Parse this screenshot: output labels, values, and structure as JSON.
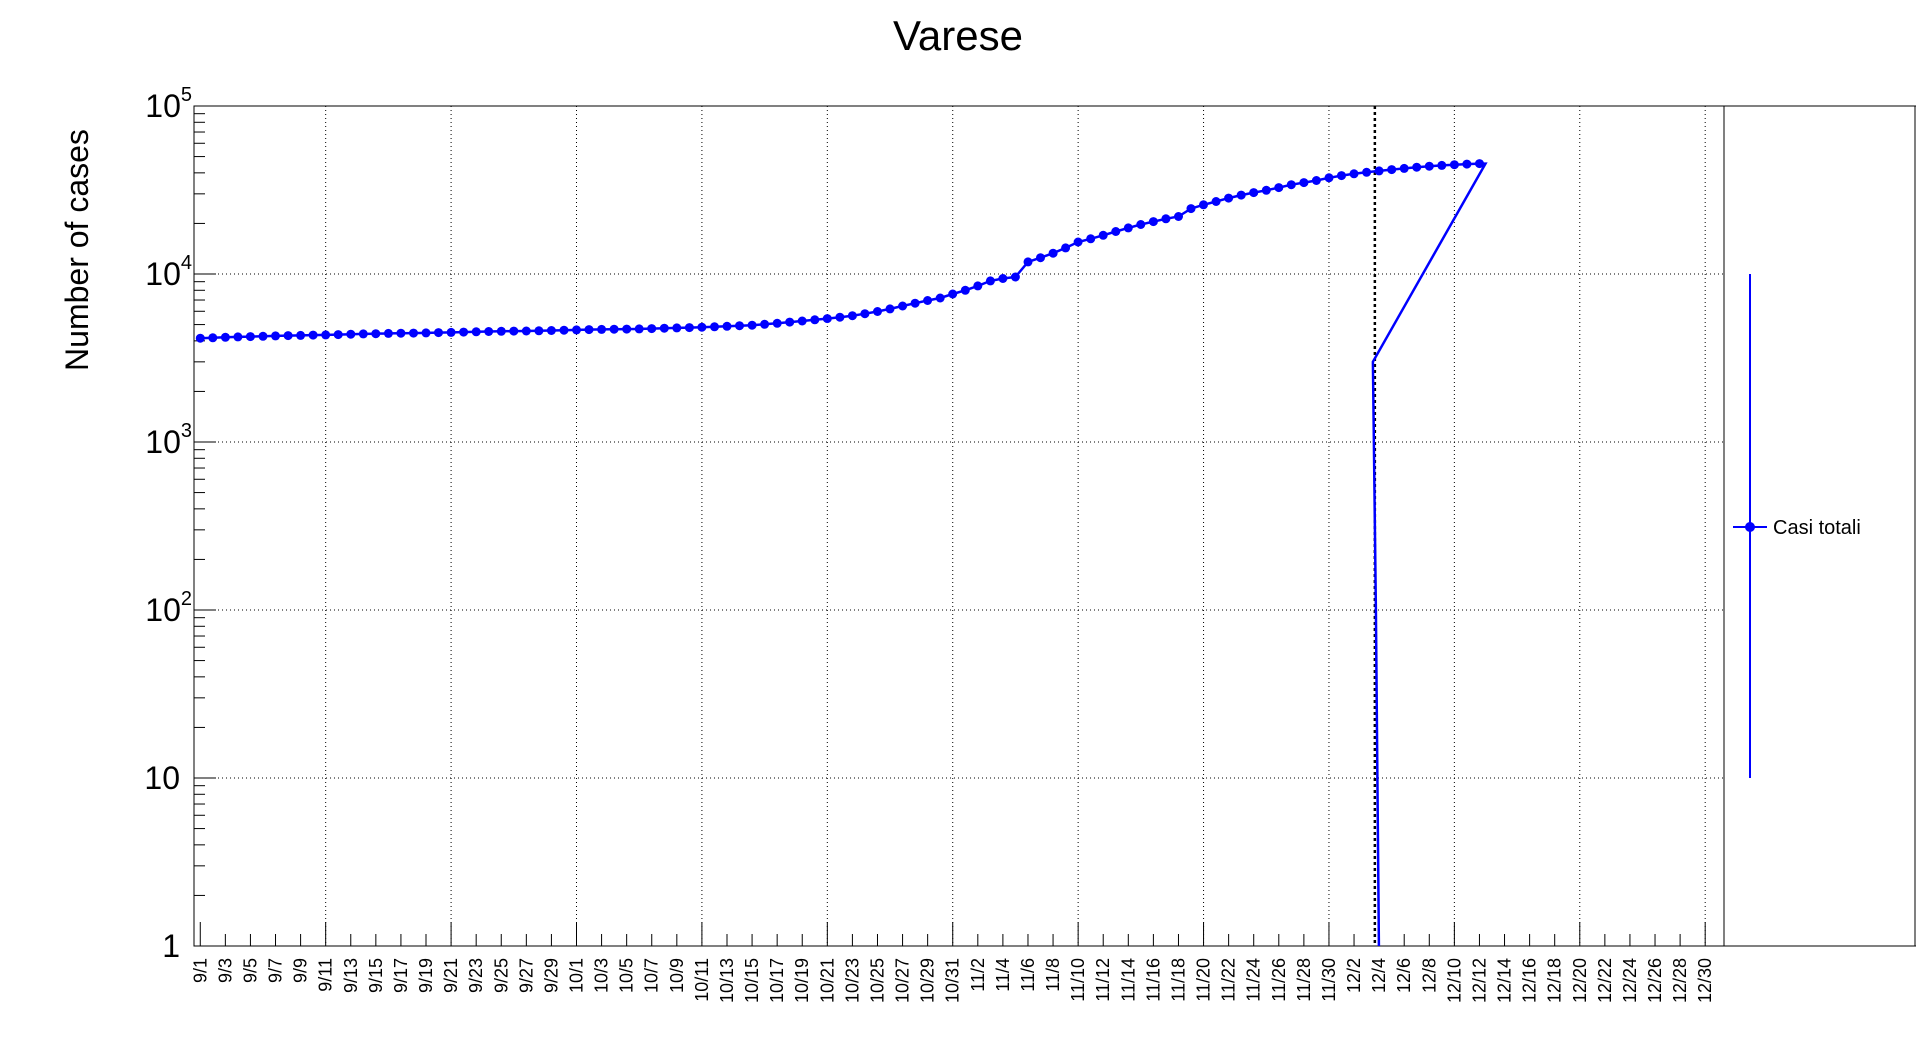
{
  "chart_data": {
    "type": "line",
    "title": "Varese",
    "xlabel": "",
    "ylabel": "Number of cases",
    "yscale": "log",
    "ylim": [
      1,
      100000
    ],
    "grid": true,
    "legend_placement": "right",
    "y_tick_labels": [
      {
        "value": 1,
        "base": "1",
        "exp": ""
      },
      {
        "value": 10,
        "base": "10",
        "exp": ""
      },
      {
        "value": 100,
        "base": "10",
        "exp": "2"
      },
      {
        "value": 1000,
        "base": "10",
        "exp": "3"
      },
      {
        "value": 10000,
        "base": "10",
        "exp": "4"
      },
      {
        "value": 100000,
        "base": "10",
        "exp": "5"
      }
    ],
    "x_tick_labels": [
      "9/1",
      "9/3",
      "9/5",
      "9/7",
      "9/9",
      "9/11",
      "9/13",
      "9/15",
      "9/17",
      "9/19",
      "9/21",
      "9/23",
      "9/25",
      "9/27",
      "9/29",
      "10/1",
      "10/3",
      "10/5",
      "10/7",
      "10/9",
      "10/11",
      "10/13",
      "10/15",
      "10/17",
      "10/19",
      "10/21",
      "10/23",
      "10/25",
      "10/27",
      "10/29",
      "10/31",
      "11/2",
      "11/4",
      "11/6",
      "11/8",
      "11/10",
      "11/12",
      "11/14",
      "11/16",
      "11/18",
      "11/20",
      "11/22",
      "11/24",
      "11/26",
      "11/28",
      "11/30",
      "12/2",
      "12/4",
      "12/6",
      "12/8",
      "12/10",
      "12/12",
      "12/14",
      "12/16",
      "12/18",
      "12/20",
      "12/22",
      "12/24",
      "12/26",
      "12/28",
      "12/30"
    ],
    "x_start": "9/1",
    "x_end": "12/31",
    "marker_date": "12/4",
    "series": [
      {
        "name": "Casi totali",
        "color": "#0000ff",
        "x_start": "9/1",
        "values": [
          4150,
          4170,
          4200,
          4220,
          4240,
          4260,
          4280,
          4300,
          4310,
          4330,
          4340,
          4360,
          4380,
          4400,
          4410,
          4430,
          4440,
          4450,
          4460,
          4480,
          4490,
          4510,
          4530,
          4550,
          4560,
          4570,
          4580,
          4590,
          4610,
          4630,
          4650,
          4670,
          4680,
          4690,
          4700,
          4710,
          4730,
          4760,
          4780,
          4800,
          4820,
          4850,
          4880,
          4920,
          4960,
          5020,
          5090,
          5170,
          5250,
          5340,
          5430,
          5530,
          5650,
          5800,
          5980,
          6200,
          6450,
          6700,
          6950,
          7200,
          7600,
          8000,
          8500,
          9100,
          9400,
          9600,
          11800,
          12500,
          13300,
          14300,
          15500,
          16200,
          17000,
          17900,
          18800,
          19700,
          20500,
          21300,
          22000,
          24500,
          25800,
          27000,
          28300,
          29500,
          30500,
          31500,
          32700,
          34000,
          35000,
          36000,
          37400,
          38500,
          39500,
          40300,
          41100,
          41800,
          42500,
          43200,
          43800,
          44300,
          44700,
          45100,
          45400
        ],
        "drop_after": "12/3"
      }
    ],
    "legend": [
      {
        "label": "Casi totali",
        "color": "#0000ff"
      }
    ]
  }
}
